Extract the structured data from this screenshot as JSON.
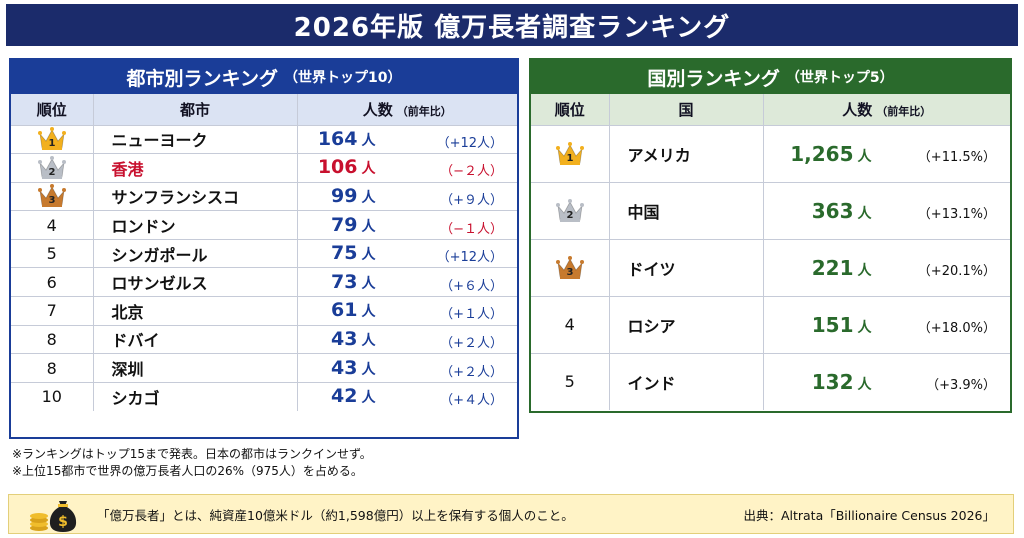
{
  "title": "2026年版 億万長者調査ランキング",
  "city_panel": {
    "title": "都市別ランキング",
    "subtitle": "（世界トップ10）",
    "headers": {
      "rank": "順位",
      "name": "都市",
      "count": "人数",
      "count_sub": "（前年比）"
    },
    "rows": [
      {
        "rank": "1",
        "name": "ニューヨーク",
        "count": "164",
        "unit": "人",
        "change": "（+12人）",
        "highlight": false
      },
      {
        "rank": "2",
        "name": "香港",
        "count": "106",
        "unit": "人",
        "change": "（−２人）",
        "highlight": true
      },
      {
        "rank": "3",
        "name": "サンフランシスコ",
        "count": "99",
        "unit": "人",
        "change": "（+９人）",
        "highlight": false
      },
      {
        "rank": "4",
        "name": "ロンドン",
        "count": "79",
        "unit": "人",
        "change": "（−１人）",
        "highlight": false
      },
      {
        "rank": "5",
        "name": "シンガポール",
        "count": "75",
        "unit": "人",
        "change": "（+12人）",
        "highlight": false
      },
      {
        "rank": "6",
        "name": "ロサンゼルス",
        "count": "73",
        "unit": "人",
        "change": "（+６人）",
        "highlight": false
      },
      {
        "rank": "7",
        "name": "北京",
        "count": "61",
        "unit": "人",
        "change": "（+１人）",
        "highlight": false
      },
      {
        "rank": "8",
        "name": "ドバイ",
        "count": "43",
        "unit": "人",
        "change": "（+２人）",
        "highlight": false
      },
      {
        "rank": "8",
        "name": "深圳",
        "count": "43",
        "unit": "人",
        "change": "（+２人）",
        "highlight": false
      },
      {
        "rank": "10",
        "name": "シカゴ",
        "count": "42",
        "unit": "人",
        "change": "（+４人）",
        "highlight": false
      }
    ]
  },
  "country_panel": {
    "title": "国別ランキング",
    "subtitle": "（世界トップ5）",
    "headers": {
      "rank": "順位",
      "name": "国",
      "count": "人数",
      "count_sub": "（前年比）"
    },
    "rows": [
      {
        "rank": "1",
        "name": "アメリカ",
        "count": "1,265",
        "unit": "人",
        "change": "（+11.5%）"
      },
      {
        "rank": "2",
        "name": "中国",
        "count": "363",
        "unit": "人",
        "change": "（+13.1%）"
      },
      {
        "rank": "3",
        "name": "ドイツ",
        "count": "221",
        "unit": "人",
        "change": "（+20.1%）"
      },
      {
        "rank": "4",
        "name": "ロシア",
        "count": "151",
        "unit": "人",
        "change": "（+18.0%）"
      },
      {
        "rank": "5",
        "name": "インド",
        "count": "132",
        "unit": "人",
        "change": "（+3.9%）"
      }
    ]
  },
  "notes": [
    "※ランキングはトップ15まで発表。日本の都市はランクインせず。",
    "※上位15都市で世界の億万長者人口の26%（975人）を占める。"
  ],
  "footer": {
    "definition": "「億万長者」とは、純資産10億米ドル（約1,598億円）以上を保有する個人のこと。",
    "source": "出典：Altrata「Billionaire Census 2026」"
  },
  "colors": {
    "banner": "#1b2b6b",
    "city_accent": "#1a3d98",
    "country_accent": "#2a6a2c",
    "negative": "#c8102e",
    "gold": "#f2b01e",
    "silver": "#b9bec6",
    "bronze": "#c77a2e"
  },
  "icons": {
    "top3": [
      "gold-crown-icon",
      "silver-crown-icon",
      "bronze-crown-icon"
    ],
    "footer": "money-bag-icon"
  }
}
